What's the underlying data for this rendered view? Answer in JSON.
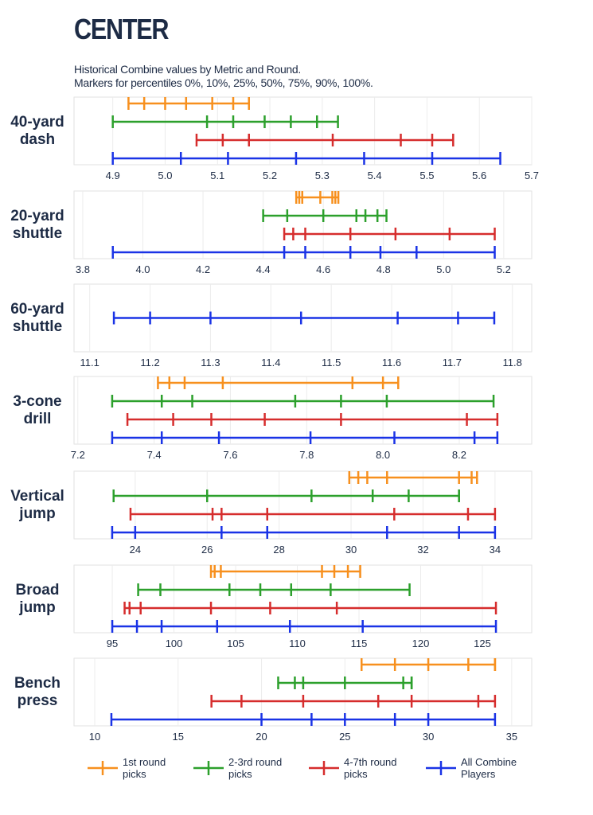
{
  "title": "CENTER",
  "subtitle": [
    "Historical Combine values by Metric and Round.",
    "Markers for percentiles 0%, 10%, 25%, 50%, 75%, 90%, 100%."
  ],
  "chart_data": [
    {
      "type": "percentile-range",
      "title": "40-yard dash",
      "xlim": [
        4.826,
        5.7
      ],
      "xticks": [
        4.9,
        {
          "value": 5,
          "label": "5.0"
        },
        5.1,
        5.2,
        5.3,
        5.4,
        5.5,
        5.6,
        5.7
      ],
      "series": [
        {
          "name": "1st round picks",
          "color": "#f7901e",
          "values": [
            4.93,
            4.96,
            5.0,
            5.04,
            5.09,
            5.13,
            5.16
          ]
        },
        {
          "name": "2-3rd round picks",
          "color": "#2ca02c",
          "values": [
            4.9,
            5.08,
            5.13,
            5.19,
            5.24,
            5.29,
            5.33
          ]
        },
        {
          "name": "4-7th round picks",
          "color": "#d62d2d",
          "values": [
            5.06,
            5.11,
            5.16,
            5.32,
            5.45,
            5.51,
            5.55
          ]
        },
        {
          "name": "All Combine Players",
          "color": "#1a33e6",
          "values": [
            4.9,
            5.03,
            5.12,
            5.25,
            5.38,
            5.51,
            5.64
          ]
        }
      ]
    },
    {
      "type": "percentile-range",
      "title": "20-yard shuttle",
      "xlim": [
        3.771,
        5.293
      ],
      "xticks": [
        3.8,
        {
          "value": 4,
          "label": "4.0"
        },
        4.2,
        4.4,
        4.6,
        4.8,
        {
          "value": 5,
          "label": "5.0"
        },
        5.2
      ],
      "series": [
        {
          "name": "1st round picks",
          "color": "#f7901e",
          "values": [
            4.51,
            4.52,
            4.53,
            4.59,
            4.63,
            4.64,
            4.65
          ]
        },
        {
          "name": "2-3rd round picks",
          "color": "#2ca02c",
          "values": [
            4.4,
            4.48,
            4.6,
            4.71,
            4.74,
            4.78,
            4.81
          ]
        },
        {
          "name": "4-7th round picks",
          "color": "#d62d2d",
          "values": [
            4.47,
            4.5,
            4.54,
            4.69,
            4.84,
            5.02,
            5.17
          ]
        },
        {
          "name": "All Combine Players",
          "color": "#1a33e6",
          "values": [
            3.9,
            4.47,
            4.54,
            4.69,
            4.79,
            4.91,
            5.17
          ]
        }
      ]
    },
    {
      "type": "percentile-range",
      "title": "60-yard shuttle",
      "xlim": [
        11.074,
        11.832
      ],
      "xticks": [
        11.1,
        11.2,
        11.3,
        11.4,
        11.5,
        11.6,
        11.7,
        11.8
      ],
      "series": [
        {
          "name": "All Combine Players",
          "color": "#1a33e6",
          "values": [
            11.14,
            11.2,
            11.3,
            11.45,
            11.61,
            11.71,
            11.77
          ]
        }
      ]
    },
    {
      "type": "percentile-range",
      "title": "3-cone drill",
      "xlim": [
        7.19,
        8.39
      ],
      "xticks": [
        7.2,
        7.4,
        7.6,
        7.8,
        {
          "value": 8,
          "label": "8.0"
        },
        8.2
      ],
      "series": [
        {
          "name": "1st round picks",
          "color": "#f7901e",
          "values": [
            7.41,
            7.44,
            7.48,
            7.58,
            7.92,
            8.0,
            8.04
          ]
        },
        {
          "name": "2-3rd round picks",
          "color": "#2ca02c",
          "values": [
            7.29,
            7.42,
            7.5,
            7.77,
            7.89,
            8.01,
            8.29
          ]
        },
        {
          "name": "4-7th round picks",
          "color": "#d62d2d",
          "values": [
            7.33,
            7.45,
            7.55,
            7.69,
            7.89,
            8.22,
            8.3
          ]
        },
        {
          "name": "All Combine Players",
          "color": "#1a33e6",
          "values": [
            7.29,
            7.42,
            7.57,
            7.81,
            8.03,
            8.24,
            8.3
          ]
        }
      ]
    },
    {
      "type": "percentile-range",
      "title": "Vertical jump",
      "xlim": [
        22.3,
        35.02
      ],
      "xticks": [
        24,
        26,
        28,
        30,
        32,
        34
      ],
      "series": [
        {
          "name": "1st round picks",
          "color": "#f7901e",
          "values": [
            29.95,
            30.2,
            30.45,
            31.0,
            33.0,
            33.35,
            33.5
          ]
        },
        {
          "name": "2-3rd round picks",
          "color": "#2ca02c",
          "values": [
            23.4,
            26.0,
            28.9,
            30.6,
            31.6,
            33.0,
            33.0
          ]
        },
        {
          "name": "4-7th round picks",
          "color": "#d62d2d",
          "values": [
            23.87,
            26.15,
            26.4,
            27.67,
            31.2,
            33.25,
            34.0
          ]
        },
        {
          "name": "All Combine Players",
          "color": "#1a33e6",
          "values": [
            23.36,
            24.0,
            26.4,
            27.67,
            31.0,
            33.0,
            34.0
          ]
        }
      ]
    },
    {
      "type": "percentile-range",
      "title": "Broad jump",
      "xlim": [
        91.9,
        129
      ],
      "xticks": [
        95,
        100,
        105,
        110,
        115,
        120,
        125
      ],
      "series": [
        {
          "name": "1st round picks",
          "color": "#f7901e",
          "values": [
            103.0,
            103.3,
            103.8,
            112.0,
            113.0,
            114.1,
            115.1
          ]
        },
        {
          "name": "2-3rd round picks",
          "color": "#2ca02c",
          "values": [
            97.1,
            98.9,
            104.5,
            107.0,
            109.5,
            112.7,
            119.1
          ]
        },
        {
          "name": "4-7th round picks",
          "color": "#d62d2d",
          "values": [
            96.0,
            96.4,
            97.3,
            103.0,
            107.8,
            113.2,
            126.1
          ]
        },
        {
          "name": "All Combine Players",
          "color": "#1a33e6",
          "values": [
            95.0,
            97.0,
            99.0,
            103.5,
            109.4,
            115.3,
            126.1
          ]
        }
      ]
    },
    {
      "type": "percentile-range",
      "title": "Bench press",
      "xlim": [
        8.76,
        36.2
      ],
      "xticks": [
        10,
        15,
        20,
        25,
        30,
        35
      ],
      "series": [
        {
          "name": "1st round picks",
          "color": "#f7901e",
          "values": [
            26,
            26,
            28,
            30,
            32.4,
            34,
            34
          ]
        },
        {
          "name": "2-3rd round picks",
          "color": "#2ca02c",
          "values": [
            21,
            22,
            22.5,
            25,
            28.5,
            29,
            29
          ]
        },
        {
          "name": "4-7th round picks",
          "color": "#d62d2d",
          "values": [
            17,
            18.8,
            22.5,
            27,
            29,
            33,
            34
          ]
        },
        {
          "name": "All Combine Players",
          "color": "#1a33e6",
          "values": [
            11,
            20,
            23,
            25,
            28,
            30,
            34
          ]
        }
      ]
    }
  ]
}
